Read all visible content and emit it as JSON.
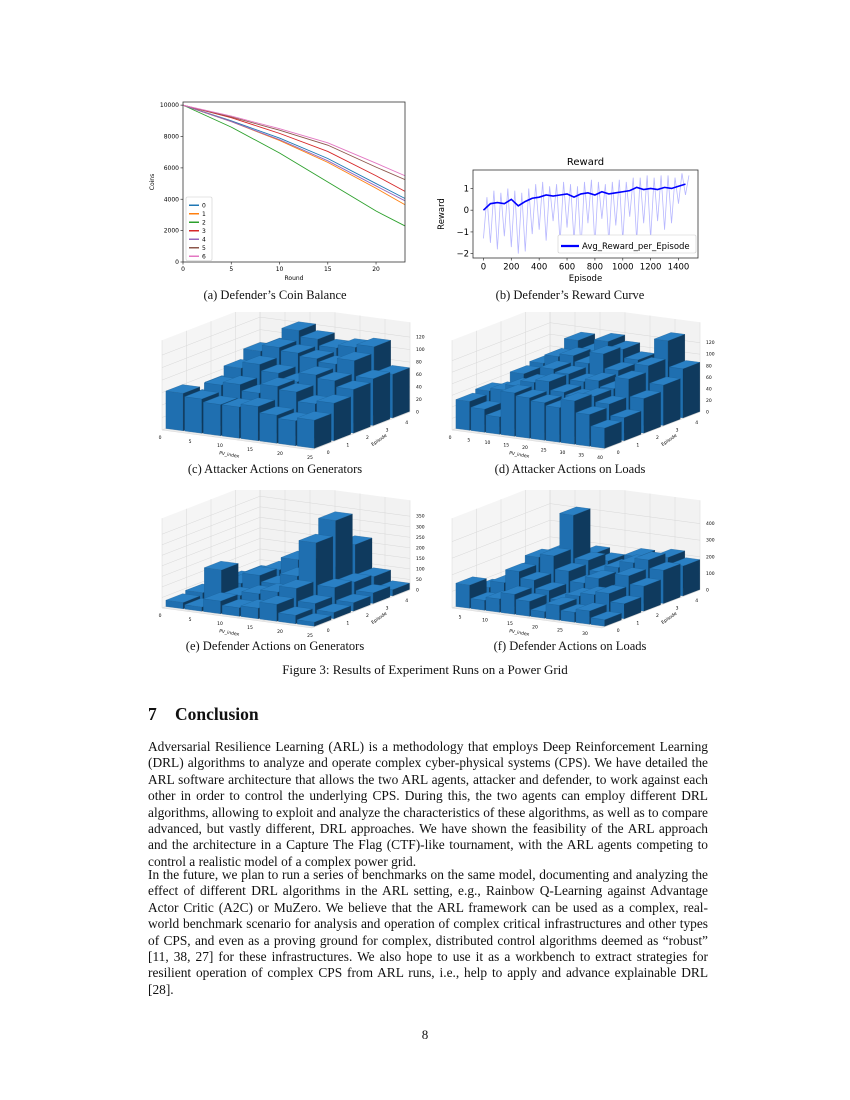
{
  "figure": {
    "caption": "Figure 3: Results of Experiment Runs on a Power Grid",
    "subcaptions": [
      "(a) Defender’s Coin Balance",
      "(b) Defender’s Reward Curve",
      "(c) Attacker Actions on Generators",
      "(d) Attacker Actions on Loads",
      "(e) Defender Actions on Generators",
      "(f) Defender Actions on Loads"
    ]
  },
  "chart_data": [
    {
      "type": "line",
      "xlabel": "Round",
      "ylabel": "Coins",
      "xlim": [
        0,
        23
      ],
      "ylim": [
        0,
        10200
      ],
      "xticks": [
        0,
        5,
        10,
        15,
        20
      ],
      "yticks": [
        0,
        2000,
        4000,
        6000,
        8000,
        10000
      ],
      "legend": "lower-left",
      "x": [
        0,
        5,
        10,
        15,
        20,
        23
      ],
      "series": [
        {
          "name": "0",
          "color": "#1f77b4",
          "values": [
            10000,
            9000,
            7900,
            6600,
            5000,
            4050
          ]
        },
        {
          "name": "1",
          "color": "#ff7f0e",
          "values": [
            10000,
            8950,
            7750,
            6350,
            4700,
            3650
          ]
        },
        {
          "name": "2",
          "color": "#2ca02c",
          "values": [
            10000,
            8600,
            6950,
            5100,
            3250,
            2300
          ]
        },
        {
          "name": "3",
          "color": "#d62728",
          "values": [
            10000,
            9200,
            8200,
            7050,
            5500,
            4500
          ]
        },
        {
          "name": "4",
          "color": "#9467bd",
          "values": [
            10000,
            8950,
            7800,
            6450,
            4850,
            3900
          ]
        },
        {
          "name": "5",
          "color": "#8c564b",
          "values": [
            10000,
            9250,
            8400,
            7450,
            6050,
            5250
          ]
        },
        {
          "name": "6",
          "color": "#e377c2",
          "values": [
            10000,
            9300,
            8500,
            7600,
            6300,
            5500
          ]
        }
      ]
    },
    {
      "type": "line",
      "title": "Reward",
      "xlabel": "Episode",
      "ylabel": "Reward",
      "xlim": [
        -75,
        1540
      ],
      "ylim": [
        -2.2,
        1.85
      ],
      "xticks": [
        0,
        200,
        400,
        600,
        800,
        1000,
        1200,
        1400
      ],
      "yticks": [
        -2,
        -1,
        0,
        1
      ],
      "legend": "lower-right",
      "raw": {
        "color": "#9999ff",
        "x_step": 25,
        "values": [
          -1.3,
          0.6,
          -1.5,
          0.9,
          -1.8,
          0.8,
          -1.2,
          1.0,
          -1.7,
          0.9,
          -2.0,
          0.8,
          -1.9,
          1.0,
          -1.1,
          1.2,
          -0.9,
          1.3,
          -1.4,
          1.1,
          -0.5,
          1.2,
          -1.5,
          1.3,
          -0.8,
          1.2,
          -1.4,
          1.1,
          -1.8,
          1.3,
          -0.6,
          1.4,
          -1.6,
          1.3,
          -0.4,
          1.2,
          -1.5,
          1.3,
          -0.7,
          1.4,
          -1.4,
          1.3,
          -0.3,
          1.5,
          -1.4,
          1.5,
          -0.6,
          1.6,
          -1.3,
          1.5,
          -0.5,
          1.6,
          -0.9,
          1.6,
          -0.6,
          1.5,
          0.3,
          1.7,
          0.7,
          1.6
        ]
      },
      "series": [
        {
          "name": "Avg_Reward_per_Episode",
          "color": "#0000ff",
          "x_step": 50,
          "values": [
            0.0,
            0.3,
            0.35,
            0.3,
            0.5,
            0.2,
            0.4,
            0.55,
            0.6,
            0.7,
            0.65,
            0.7,
            0.75,
            0.6,
            0.75,
            0.8,
            0.7,
            0.85,
            0.75,
            0.8,
            0.85,
            0.9,
            1.05,
            0.95,
            1.0,
            0.95,
            1.05,
            1.0,
            1.1,
            1.2
          ]
        }
      ]
    },
    {
      "type": "bar3d",
      "xlabel": "PV_index",
      "ylabel": "Episode",
      "xlim": [
        0,
        25
      ],
      "xticks": [
        0,
        5,
        10,
        15,
        20,
        25
      ],
      "yticks": [
        0,
        1,
        2,
        3,
        4
      ],
      "zlim": [
        0,
        125
      ],
      "zticks": [
        0,
        20,
        40,
        60,
        80,
        100,
        120
      ],
      "color": "#1f77b4",
      "values": [
        [
          60,
          55,
          50,
          50,
          55,
          45,
          40,
          45
        ],
        [
          40,
          65,
          70,
          60,
          75,
          70,
          55,
          60
        ],
        [
          50,
          80,
          90,
          80,
          70,
          85,
          80,
          70
        ],
        [
          45,
          95,
          105,
          100,
          95,
          90,
          100,
          75
        ],
        [
          40,
          90,
          120,
          110,
          100,
          105,
          110,
          70
        ]
      ]
    },
    {
      "type": "bar3d",
      "xlabel": "PV_index",
      "ylabel": "Episode",
      "xlim": [
        0,
        40
      ],
      "xticks": [
        0,
        5,
        10,
        15,
        20,
        25,
        30,
        35,
        40
      ],
      "yticks": [
        0,
        1,
        2,
        3,
        4
      ],
      "zlim": [
        0,
        135
      ],
      "zticks": [
        0,
        20,
        40,
        60,
        80,
        100,
        120
      ],
      "color": "#1f77b4",
      "values": [
        [
          50,
          40,
          30,
          75,
          70,
          65,
          60,
          75,
          55,
          35
        ],
        [
          55,
          60,
          70,
          80,
          85,
          70,
          65,
          70,
          60,
          40
        ],
        [
          40,
          75,
          60,
          90,
          85,
          75,
          80,
          70,
          90,
          60
        ],
        [
          45,
          80,
          95,
          100,
          90,
          110,
          85,
          75,
          100,
          70
        ],
        [
          40,
          70,
          110,
          95,
          115,
          105,
          90,
          80,
          130,
          85
        ]
      ]
    },
    {
      "type": "bar3d",
      "xlabel": "PV_index",
      "ylabel": "Episode",
      "xlim": [
        0,
        25
      ],
      "xticks": [
        0,
        5,
        10,
        15,
        20,
        25
      ],
      "yticks": [
        0,
        1,
        2,
        3,
        4
      ],
      "zlim": [
        0,
        370
      ],
      "zticks": [
        0,
        50,
        100,
        150,
        200,
        250,
        300,
        350
      ],
      "color": "#1f77b4",
      "values": [
        [
          30,
          20,
          60,
          40,
          50,
          80,
          40,
          20
        ],
        [
          40,
          160,
          50,
          70,
          90,
          120,
          60,
          30
        ],
        [
          20,
          60,
          110,
          80,
          130,
          300,
          100,
          40
        ],
        [
          30,
          50,
          100,
          160,
          120,
          370,
          90,
          50
        ],
        [
          20,
          40,
          70,
          90,
          60,
          220,
          80,
          30
        ]
      ]
    },
    {
      "type": "bar3d",
      "xlabel": "PV_index",
      "ylabel": "Episode",
      "xlim": [
        3,
        33
      ],
      "xticks": [
        5,
        10,
        15,
        20,
        25,
        30
      ],
      "yticks": [
        0,
        1,
        2,
        3,
        4
      ],
      "zlim": [
        0,
        470
      ],
      "zticks": [
        0,
        100,
        200,
        300,
        400
      ],
      "color": "#1f77b4",
      "values": [
        [
          140,
          60,
          80,
          120,
          90,
          40,
          90,
          60,
          80,
          40
        ],
        [
          80,
          120,
          200,
          160,
          110,
          60,
          100,
          120,
          140,
          90
        ],
        [
          60,
          150,
          240,
          260,
          180,
          120,
          160,
          90,
          200,
          150
        ],
        [
          40,
          100,
          220,
          460,
          200,
          140,
          180,
          220,
          250,
          200
        ],
        [
          30,
          80,
          140,
          180,
          150,
          120,
          200,
          160,
          220,
          180
        ]
      ]
    }
  ],
  "section": {
    "number": "7",
    "title": "Conclusion"
  },
  "paragraphs": [
    "Adversarial Resilience Learning (ARL) is a methodology that employs Deep Reinforcement Learning (DRL) algorithms to analyze and operate complex cyber-physical systems (CPS). We have detailed the ARL software architecture that allows the two ARL agents, attacker and defender, to work against each other in order to control the underlying CPS. During this, the two agents can employ different DRL algorithms, allowing to exploit and analyze the characteristics of these algorithms, as well as to compare advanced, but vastly different, DRL approaches. We have shown the feasibility of the ARL approach and the architecture in a Capture The Flag (CTF)-like tournament, with the ARL agents competing to control a realistic model of a complex power grid.",
    "In the future, we plan to run a series of benchmarks on the same model, documenting and analyzing the effect of different DRL algorithms in the ARL setting, e.g., Rainbow Q-Learning against Advantage Actor Critic (A2C) or MuZero.  We believe that the ARL framework can be used as a complex, real-world benchmark scenario for analysis and operation of complex critical infrastructures and other types of CPS, and even as a proving ground for complex, distributed control algorithms deemed as “robust” [11, 38, 27] for these infrastructures. We also hope to use it as a workbench to extract strategies for resilient operation of complex CPS from ARL runs, i.e., help to apply and advance explainable DRL [28]."
  ],
  "page_number": "8"
}
